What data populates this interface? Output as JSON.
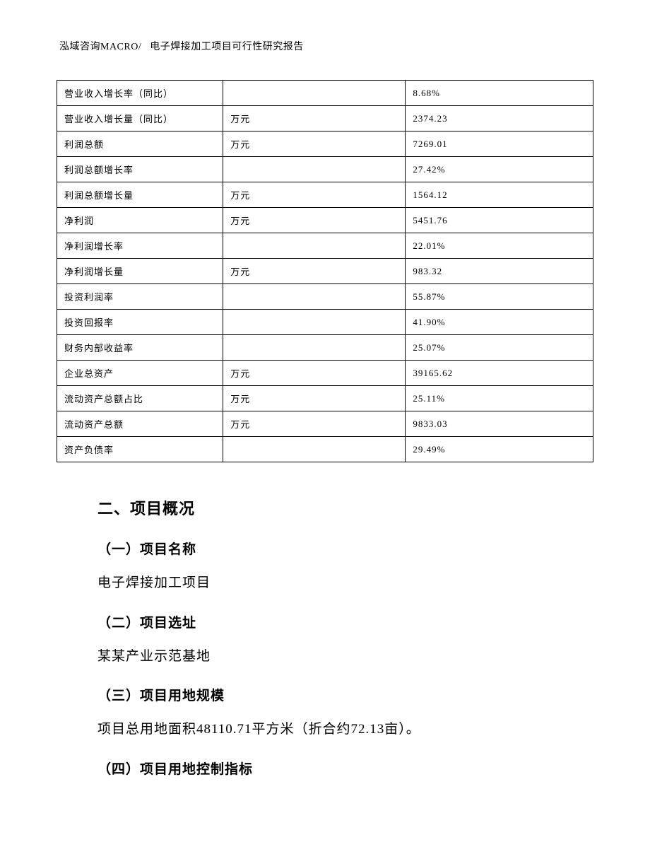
{
  "header": {
    "left": "泓域咨询MACRO/",
    "right": "电子焊接加工项目可行性研究报告"
  },
  "table": {
    "type": "table",
    "border_color": "#000000",
    "background_color": "#ffffff",
    "text_color": "#000000",
    "font_size_pt": 10,
    "column_widths_pct": [
      31,
      34,
      35
    ],
    "rows": [
      [
        "营业收入增长率（同比）",
        "",
        "8.68%"
      ],
      [
        "营业收入增长量（同比）",
        "万元",
        "2374.23"
      ],
      [
        "利润总额",
        "万元",
        "7269.01"
      ],
      [
        "利润总额增长率",
        "",
        "27.42%"
      ],
      [
        "利润总额增长量",
        "万元",
        "1564.12"
      ],
      [
        "净利润",
        "万元",
        "5451.76"
      ],
      [
        "净利润增长率",
        "",
        "22.01%"
      ],
      [
        "净利润增长量",
        "万元",
        "983.32"
      ],
      [
        "投资利润率",
        "",
        "55.87%"
      ],
      [
        "投资回报率",
        "",
        "41.90%"
      ],
      [
        "财务内部收益率",
        "",
        "25.07%"
      ],
      [
        "企业总资产",
        "万元",
        "39165.62"
      ],
      [
        "流动资产总额占比",
        "万元",
        "25.11%"
      ],
      [
        "流动资产总额",
        "万元",
        "9833.03"
      ],
      [
        "资产负债率",
        "",
        "29.49%"
      ]
    ]
  },
  "sections": {
    "main_title": "二、项目概况",
    "s1": {
      "title": "（一）项目名称",
      "body": "电子焊接加工项目"
    },
    "s2": {
      "title": "（二）项目选址",
      "body": "某某产业示范基地"
    },
    "s3": {
      "title": "（三）项目用地规模",
      "body": "项目总用地面积48110.71平方米（折合约72.13亩）。"
    },
    "s4": {
      "title": "（四）项目用地控制指标"
    }
  }
}
